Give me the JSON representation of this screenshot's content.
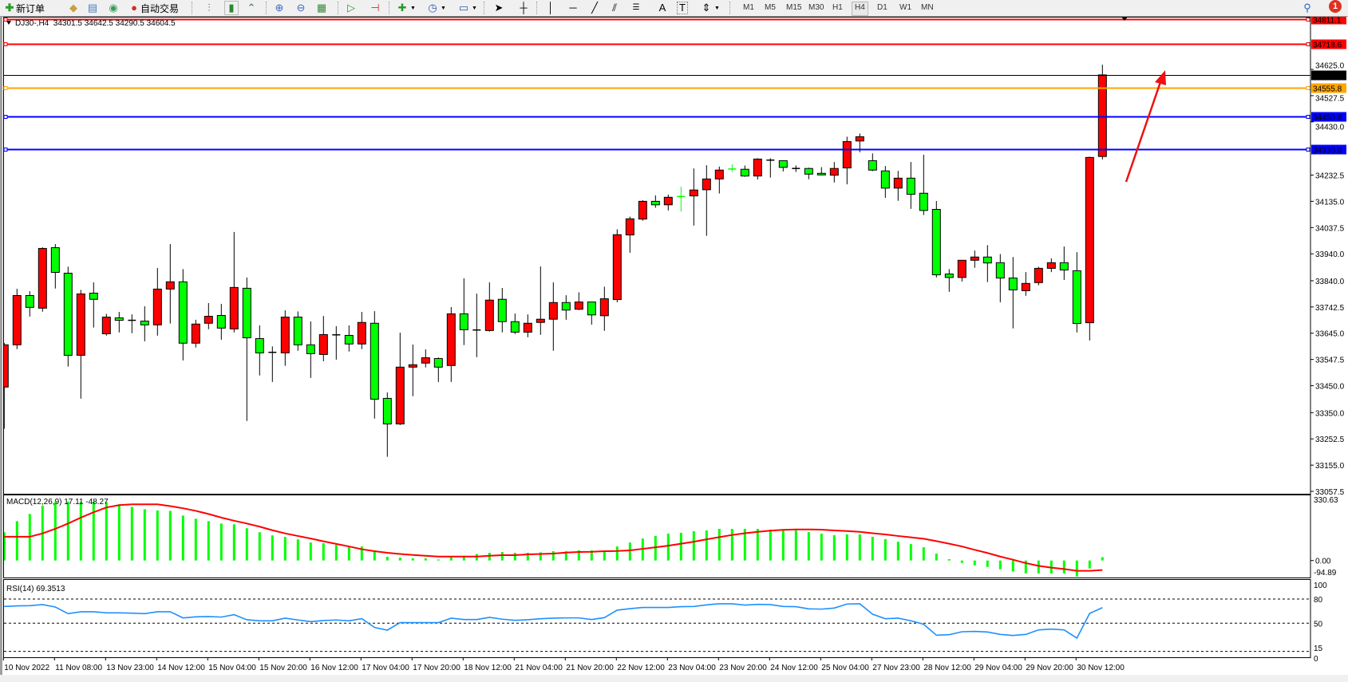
{
  "toolbar": {
    "new_order_label": "新订单",
    "auto_trade_label": "自动交易",
    "icons": [
      "new-order-icon",
      "metaeditor-icon",
      "market-watch-icon",
      "signals-icon",
      "auto-trading-icon",
      "bar-chart-icon",
      "candlestick-icon",
      "line-chart-icon",
      "zoom-in-icon",
      "zoom-out-icon",
      "tile-windows-icon",
      "chart-shift-icon",
      "auto-scroll-icon",
      "indicators-icon",
      "periods-icon",
      "templates-icon",
      "cursor-icon",
      "crosshair-icon",
      "vertical-line-icon",
      "horizontal-line-icon",
      "trendline-icon",
      "equidistant-channel-icon",
      "fibonacci-icon",
      "text-icon",
      "text-label-icon",
      "arrows-icon",
      "search-icon",
      "notifications-icon"
    ],
    "timeframes": [
      "M1",
      "M5",
      "M15",
      "M30",
      "H1",
      "H4",
      "D1",
      "W1",
      "MN"
    ],
    "active_timeframe": "H4",
    "notification_count": "1"
  },
  "chart": {
    "header": "DJ30-,H4  34301.5 34642.5 34290.5 34604.5",
    "symbol": "DJ30-",
    "timeframe": "H4",
    "ohlc": {
      "open": 34301.5,
      "high": 34642.5,
      "low": 34290.5,
      "close": 34604.5
    },
    "colors": {
      "bull": "#ff0000",
      "bear": "#00ff00",
      "doji": "#000000",
      "macd": "#00ff00",
      "signal": "#ff0000",
      "rsi": "#1e90ff",
      "arrow": "#ee1111"
    },
    "price_ticks": [
      "34625.0",
      "34527.5",
      "34430.0",
      "34232.5",
      "34135.0",
      "34037.5",
      "33940.0",
      "33840.0",
      "33742.5",
      "33645.0",
      "33547.5",
      "33450.0",
      "33350.0",
      "33252.5",
      "33155.0",
      "33057.5"
    ],
    "hlines": [
      {
        "price": 34811.1,
        "label": "34811.1",
        "color": "#ff0000"
      },
      {
        "price": 34718.6,
        "label": "34718.6",
        "color": "#ff0000"
      },
      {
        "price": 34555.8,
        "label": "34555.8",
        "color": "#ffa500"
      },
      {
        "price": 34450.8,
        "label": "34450.8",
        "color": "#0000ff"
      },
      {
        "price": 34330.0,
        "label": "34330.0",
        "color": "#0000ff"
      }
    ],
    "bid_line": {
      "price": 34604.5,
      "label": "34604.5",
      "color": "#000000"
    },
    "time_labels": [
      "10 Nov 2022",
      "11 Nov 08:00",
      "13 Nov 23:00",
      "14 Nov 12:00",
      "15 Nov 04:00",
      "15 Nov 20:00",
      "16 Nov 12:00",
      "17 Nov 04:00",
      "17 Nov 20:00",
      "18 Nov 12:00",
      "21 Nov 04:00",
      "21 Nov 20:00",
      "22 Nov 12:00",
      "23 Nov 04:00",
      "23 Nov 20:00",
      "24 Nov 12:00",
      "25 Nov 04:00",
      "27 Nov 23:00",
      "28 Nov 12:00",
      "29 Nov 04:00",
      "29 Nov 20:00",
      "30 Nov 12:00"
    ],
    "candles": [
      [
        33445,
        33609,
        33290,
        33602
      ],
      [
        33602,
        33810,
        33586,
        33785
      ],
      [
        33785,
        33801,
        33707,
        33741
      ],
      [
        33738,
        33964,
        33725,
        33960
      ],
      [
        33963,
        33976,
        33811,
        33871
      ],
      [
        33868,
        33892,
        33521,
        33563
      ],
      [
        33563,
        33806,
        33402,
        33791
      ],
      [
        33794,
        33834,
        33666,
        33771
      ],
      [
        33643,
        33717,
        33636,
        33705
      ],
      [
        33702,
        33724,
        33648,
        33693
      ],
      [
        33693,
        33715,
        33645,
        33693
      ],
      [
        33690,
        33745,
        33615,
        33676
      ],
      [
        33676,
        33887,
        33636,
        33809
      ],
      [
        33809,
        33976,
        33681,
        33836
      ],
      [
        33836,
        33883,
        33544,
        33608
      ],
      [
        33608,
        33695,
        33592,
        33679
      ],
      [
        33682,
        33757,
        33660,
        33708
      ],
      [
        33711,
        33754,
        33621,
        33664
      ],
      [
        33661,
        34021,
        33648,
        33815
      ],
      [
        33812,
        33852,
        33319,
        33628
      ],
      [
        33625,
        33674,
        33488,
        33572
      ],
      [
        33574,
        33596,
        33464,
        33574
      ],
      [
        33572,
        33730,
        33524,
        33705
      ],
      [
        33705,
        33726,
        33580,
        33602
      ],
      [
        33602,
        33689,
        33479,
        33569
      ],
      [
        33566,
        33709,
        33541,
        33640
      ],
      [
        33639,
        33671,
        33547,
        33639
      ],
      [
        33637,
        33674,
        33577,
        33605
      ],
      [
        33605,
        33724,
        33586,
        33685
      ],
      [
        33682,
        33727,
        33328,
        33400
      ],
      [
        33403,
        33425,
        33186,
        33308
      ],
      [
        33308,
        33647,
        33304,
        33519
      ],
      [
        33519,
        33603,
        33411,
        33528
      ],
      [
        33534,
        33585,
        33518,
        33554
      ],
      [
        33551,
        33555,
        33464,
        33519
      ],
      [
        33525,
        33742,
        33464,
        33717
      ],
      [
        33717,
        33849,
        33601,
        33658
      ],
      [
        33657,
        33792,
        33556,
        33657
      ],
      [
        33655,
        33834,
        33651,
        33768
      ],
      [
        33771,
        33813,
        33648,
        33688
      ],
      [
        33688,
        33718,
        33642,
        33649
      ],
      [
        33649,
        33715,
        33630,
        33682
      ],
      [
        33685,
        33893,
        33639,
        33697
      ],
      [
        33697,
        33834,
        33580,
        33759
      ],
      [
        33759,
        33786,
        33695,
        33731
      ],
      [
        33734,
        33797,
        33731,
        33761
      ],
      [
        33761,
        33761,
        33677,
        33713
      ],
      [
        33710,
        33818,
        33654,
        33773
      ],
      [
        33770,
        34031,
        33760,
        34011
      ],
      [
        34010,
        34078,
        33944,
        34070
      ],
      [
        34069,
        34139,
        34063,
        34135
      ],
      [
        34135,
        34157,
        34111,
        34122
      ],
      [
        34122,
        34160,
        34101,
        34150
      ],
      [
        34153,
        34189,
        34097,
        34152
      ],
      [
        34155,
        34257,
        34045,
        34177
      ],
      [
        34178,
        34269,
        34007,
        34218
      ],
      [
        34218,
        34264,
        34164,
        34251
      ],
      [
        34255,
        34272,
        34244,
        34254
      ],
      [
        34254,
        34268,
        34226,
        34229
      ],
      [
        34229,
        34295,
        34216,
        34292
      ],
      [
        34288,
        34295,
        34223,
        34288
      ],
      [
        34286,
        34286,
        34246,
        34261
      ],
      [
        34257,
        34268,
        34244,
        34257
      ],
      [
        34257,
        34260,
        34217,
        34236
      ],
      [
        34239,
        34262,
        34233,
        34233
      ],
      [
        34232,
        34281,
        34205,
        34257
      ],
      [
        34259,
        34375,
        34198,
        34357
      ],
      [
        34359,
        34387,
        34317,
        34375
      ],
      [
        34286,
        34313,
        34247,
        34251
      ],
      [
        34248,
        34266,
        34148,
        34184
      ],
      [
        34184,
        34248,
        34137,
        34221
      ],
      [
        34221,
        34281,
        34107,
        34161
      ],
      [
        34165,
        34308,
        34084,
        34101
      ],
      [
        34105,
        34136,
        33852,
        33862
      ],
      [
        33865,
        33883,
        33799,
        33852
      ],
      [
        33852,
        33916,
        33837,
        33916
      ],
      [
        33916,
        33952,
        33888,
        33928
      ],
      [
        33928,
        33972,
        33835,
        33906
      ],
      [
        33907,
        33939,
        33760,
        33850
      ],
      [
        33850,
        33928,
        33663,
        33806
      ],
      [
        33803,
        33872,
        33784,
        33830
      ],
      [
        33833,
        33892,
        33823,
        33886
      ],
      [
        33886,
        33923,
        33872,
        33907
      ],
      [
        33907,
        33967,
        33843,
        33880
      ],
      [
        33877,
        33946,
        33648,
        33681
      ],
      [
        33684,
        34301,
        33618,
        34298
      ],
      [
        34301.5,
        34642.5,
        34290.5,
        34604.5
      ]
    ]
  },
  "macd": {
    "label": "MACD(12,26,9) 17.11 -48.27",
    "max_label": "330.63",
    "zero_label": "0.00",
    "min_label": "-94.89",
    "histogram": [
      143,
      199,
      235,
      277,
      295,
      297,
      297,
      297,
      295,
      284,
      271,
      259,
      253,
      251,
      227,
      211,
      199,
      187,
      183,
      163,
      143,
      127,
      119,
      107,
      91,
      87,
      79,
      71,
      71,
      47,
      19,
      15,
      11,
      11,
      5,
      19,
      24,
      33,
      39,
      43,
      39,
      39,
      41,
      47,
      47,
      51,
      51,
      51,
      71,
      91,
      111,
      124,
      136,
      140,
      148,
      152,
      160,
      160,
      160,
      160,
      156,
      152,
      152,
      144,
      136,
      128,
      132,
      132,
      120,
      108,
      95,
      83,
      67,
      35,
      7,
      -12,
      -24,
      -32,
      -44,
      -56,
      -65,
      -65,
      -65,
      -65,
      -81,
      -40,
      17.11
    ],
    "signal": [
      120,
      120,
      120,
      137,
      160,
      187,
      217,
      244,
      268,
      280,
      284,
      284,
      284,
      275,
      264,
      251,
      235,
      217,
      201,
      187,
      171,
      153,
      137,
      124,
      111,
      97,
      84,
      71,
      57,
      47,
      39,
      33,
      28,
      24,
      20,
      20,
      20,
      20,
      24,
      27,
      27,
      31,
      33,
      35,
      40,
      43,
      44,
      47,
      48,
      51,
      59,
      67,
      75,
      85,
      95,
      107,
      118,
      129,
      138,
      145,
      151,
      155,
      157,
      157,
      156,
      152,
      149,
      145,
      138,
      132,
      124,
      117,
      110,
      98,
      85,
      71,
      54,
      38,
      20,
      4,
      -13,
      -27,
      -36,
      -43,
      -52,
      -52,
      -48.27
    ]
  },
  "rsi": {
    "label": "RSI(14) 69.3513",
    "levels": [
      "100",
      "80",
      "50",
      "15",
      "0"
    ],
    "values": [
      70.8,
      71.5,
      71.8,
      73.1,
      70.1,
      61.9,
      64.2,
      64.2,
      62.9,
      62.9,
      62.5,
      61.9,
      64.2,
      64.2,
      56.6,
      57.9,
      58.3,
      57.6,
      60.6,
      54.3,
      53.0,
      53.0,
      56.3,
      54.0,
      52.0,
      53.3,
      54.0,
      53.0,
      55.6,
      44.7,
      41.4,
      50.7,
      50.7,
      50.7,
      50.7,
      56.3,
      54.6,
      54.6,
      57.3,
      55.0,
      53.6,
      54.3,
      55.6,
      56.3,
      56.6,
      56.6,
      54.6,
      56.9,
      66.2,
      68.1,
      69.5,
      69.5,
      69.5,
      70.5,
      70.8,
      72.8,
      74.1,
      74.1,
      72.5,
      73.4,
      73.1,
      70.8,
      70.5,
      67.8,
      67.5,
      68.8,
      73.8,
      74.1,
      61.2,
      55.6,
      56.3,
      53.0,
      48.7,
      35.1,
      35.8,
      39.4,
      39.8,
      39.1,
      36.1,
      34.8,
      36.1,
      41.7,
      42.7,
      41.7,
      31.5,
      62.2,
      69.35
    ]
  }
}
